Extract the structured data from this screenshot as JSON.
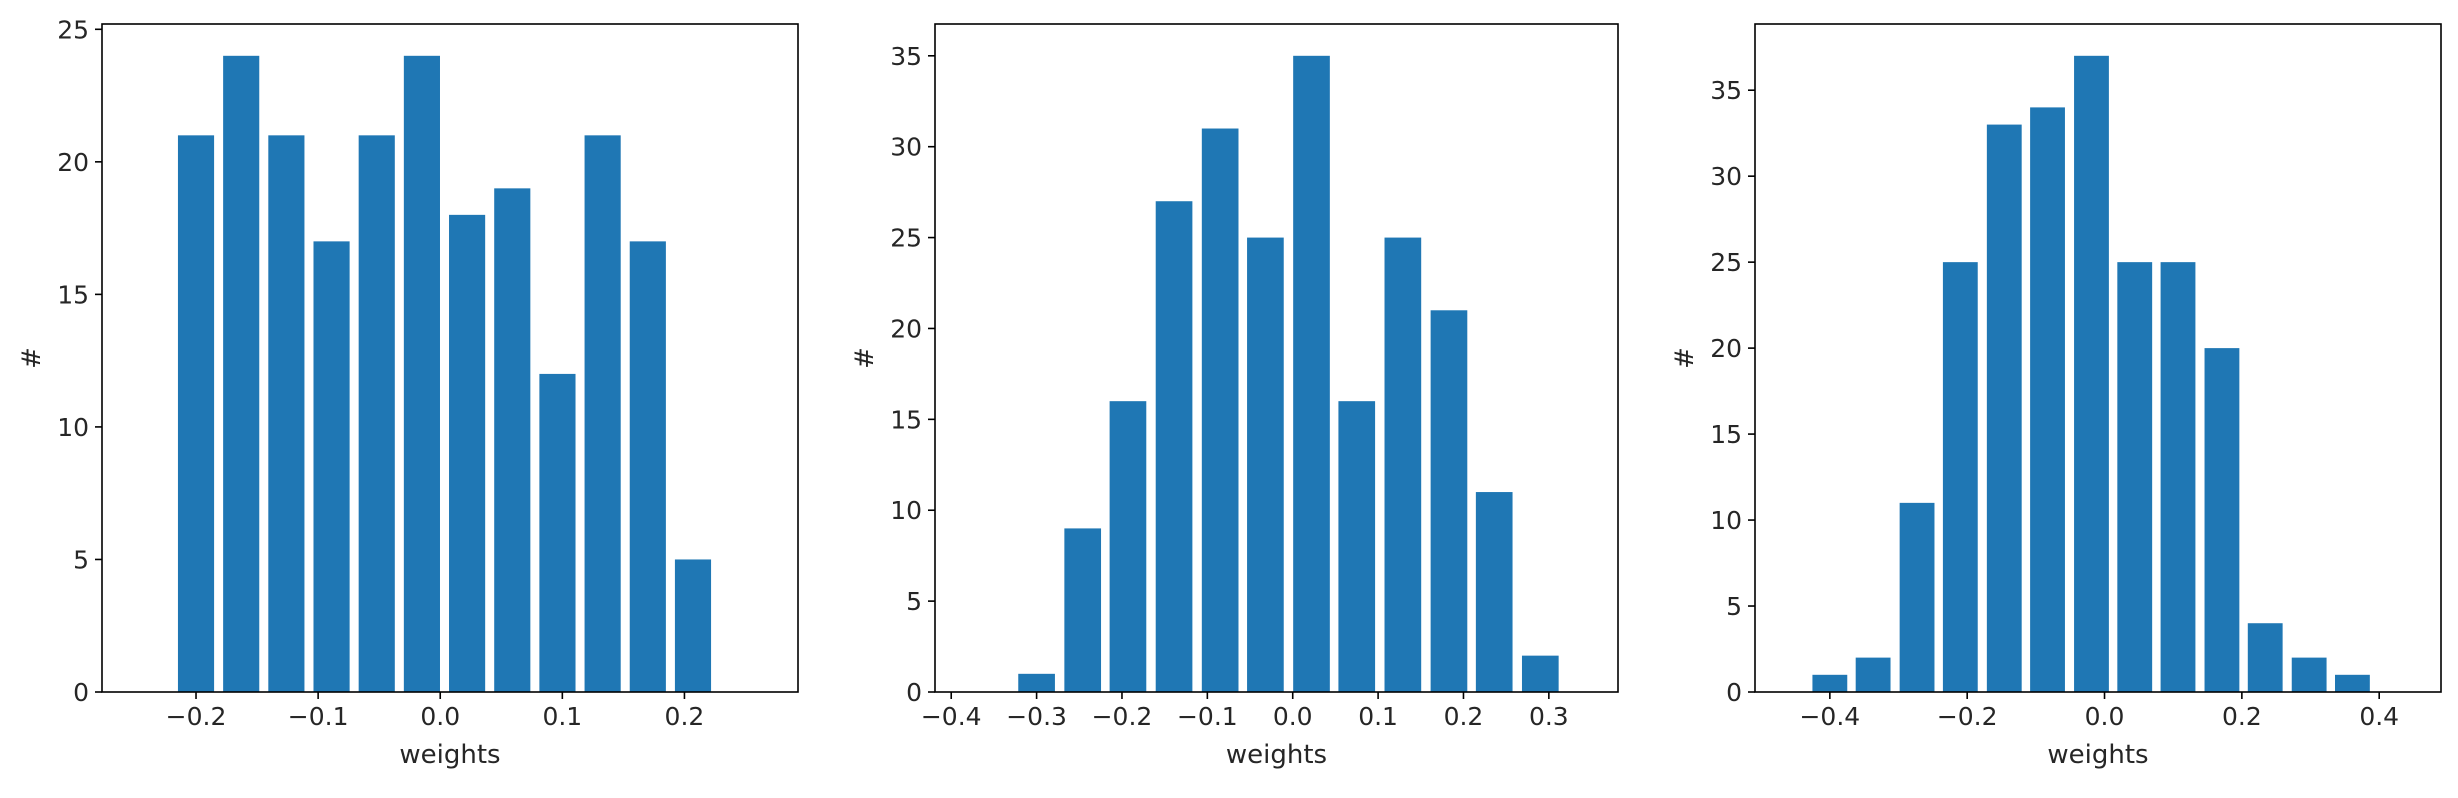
{
  "bar_color": "#1f77b4",
  "chart_data": [
    {
      "type": "bar",
      "x": [
        -0.2,
        -0.163,
        -0.126,
        -0.089,
        -0.052,
        -0.015,
        0.022,
        0.059,
        0.096,
        0.133,
        0.17,
        0.207
      ],
      "values": [
        21,
        24,
        21,
        17,
        21,
        24,
        18,
        19,
        12,
        21,
        17,
        5
      ],
      "bin_width": 0.037,
      "xlabel": "weights",
      "ylabel": "#",
      "xlim": [
        -0.277,
        0.293
      ],
      "ylim": [
        0,
        25.2
      ],
      "xticks": [
        -0.2,
        -0.1,
        0.0,
        0.1,
        0.2
      ],
      "xtick_labels": [
        "−0.2",
        "−0.1",
        "0.0",
        "0.1",
        "0.2"
      ],
      "yticks": [
        0,
        5,
        10,
        15,
        20,
        25
      ],
      "ytick_labels": [
        "0",
        "5",
        "10",
        "15",
        "20",
        "25"
      ],
      "grid": false,
      "legend": "none"
    },
    {
      "type": "bar",
      "x": [
        -0.354,
        -0.3,
        -0.246,
        -0.193,
        -0.139,
        -0.085,
        -0.032,
        0.022,
        0.075,
        0.129,
        0.183,
        0.236,
        0.29
      ],
      "values": [
        0,
        1,
        9,
        16,
        27,
        31,
        25,
        35,
        16,
        25,
        21,
        11,
        2
      ],
      "bin_width": 0.0537,
      "xlabel": "weights",
      "ylabel": "#",
      "xlim": [
        -0.419,
        0.381
      ],
      "ylim": [
        0,
        36.75
      ],
      "xticks": [
        -0.4,
        -0.3,
        -0.2,
        -0.1,
        0.0,
        0.1,
        0.2,
        0.3
      ],
      "xtick_labels": [
        "−0.4",
        "−0.3",
        "−0.2",
        "−0.1",
        "0.0",
        "0.1",
        "0.2",
        "0.3"
      ],
      "yticks": [
        0,
        5,
        10,
        15,
        20,
        25,
        30,
        35
      ],
      "ytick_labels": [
        "0",
        "5",
        "10",
        "15",
        "20",
        "25",
        "30",
        "35"
      ],
      "grid": false,
      "legend": "none"
    },
    {
      "type": "bar",
      "x": [
        -0.4,
        -0.337,
        -0.273,
        -0.21,
        -0.146,
        -0.083,
        -0.019,
        0.044,
        0.107,
        0.171,
        0.234,
        0.298,
        0.361
      ],
      "values": [
        1,
        2,
        11,
        25,
        33,
        34,
        37,
        25,
        25,
        20,
        4,
        2,
        1
      ],
      "bin_width": 0.0634,
      "xlabel": "weights",
      "ylabel": "#",
      "xlim": [
        -0.509,
        0.49
      ],
      "ylim": [
        0,
        38.85
      ],
      "xticks": [
        -0.4,
        -0.2,
        0.0,
        0.2,
        0.4
      ],
      "xtick_labels": [
        "−0.4",
        "−0.2",
        "0.0",
        "0.2",
        "0.4"
      ],
      "yticks": [
        0,
        5,
        10,
        15,
        20,
        25,
        30,
        35
      ],
      "ytick_labels": [
        "0",
        "5",
        "10",
        "15",
        "20",
        "25",
        "30",
        "35"
      ],
      "grid": false,
      "legend": "none"
    }
  ]
}
